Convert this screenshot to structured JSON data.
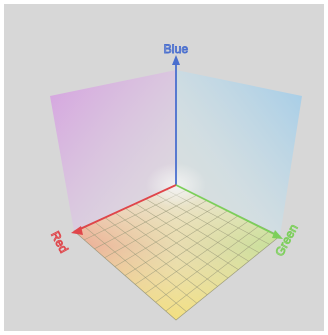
{
  "diagram": {
    "type": "rgb-color-cube-3d-axes",
    "axes": [
      {
        "key": "red",
        "label": "Red",
        "color": "#e0454a"
      },
      {
        "key": "green",
        "label": "Green",
        "color": "#7ccf5a"
      },
      {
        "key": "blue",
        "label": "Blue",
        "color": "#4a6fcf"
      }
    ],
    "colors": {
      "frame_background": "#d7d7d7",
      "back_left_wall": "#c99ad6",
      "back_right_wall": "#a9c8e9",
      "floor_near": "#efe08f",
      "floor_red_corner": "#ec8e80",
      "floor_green_corner": "#b9e08a",
      "grid_line": "#9a9a7a",
      "origin_glow": "#ececec"
    },
    "grid": {
      "divisions": 10
    }
  }
}
